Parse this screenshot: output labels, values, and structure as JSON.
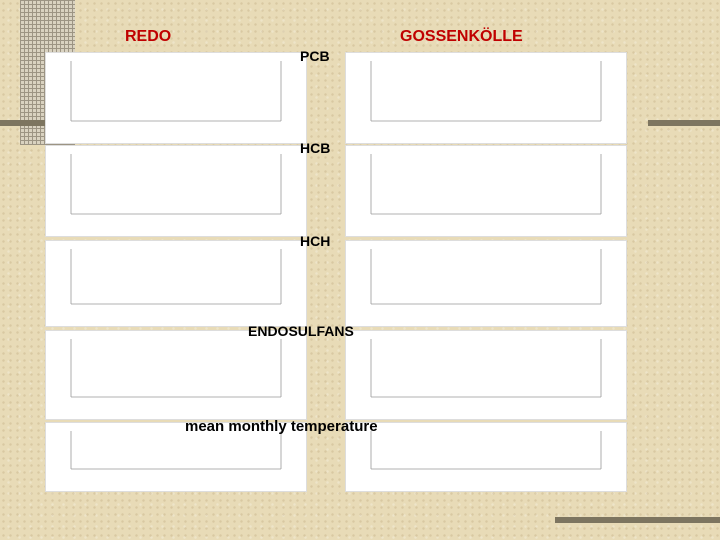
{
  "slide": {
    "site_labels": [
      "REDO",
      "GOSSENKÖLLE"
    ],
    "panel_labels": [
      "PCB",
      "HCB",
      "HCH",
      "ENDOSULFANS",
      "mean monthly temperature"
    ]
  }
}
